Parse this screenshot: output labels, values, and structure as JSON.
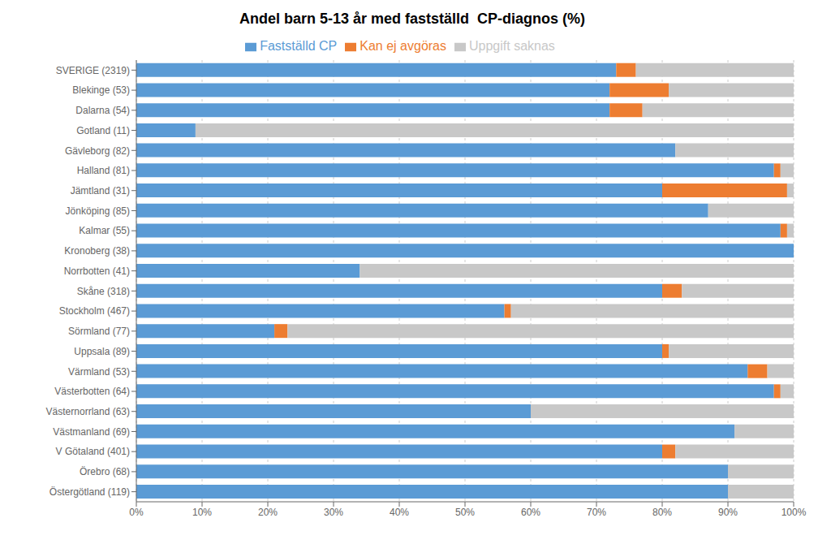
{
  "chart_data": {
    "type": "bar",
    "title": "Andel barn 5-13 år med fastställd  CP-diagnos (%)",
    "orientation": "horizontal",
    "stacked": true,
    "grid": true,
    "legend": "top",
    "categories": [
      "SVERIGE (2319)",
      "Blekinge (53)",
      "Dalarna (54)",
      "Gotland (11)",
      "Gävleborg (82)",
      "Halland (81)",
      "Jämtland (31)",
      "Jönköping (85)",
      "Kalmar (55)",
      "Kronoberg (38)",
      "Norrbotten (41)",
      "Skåne (318)",
      "Stockholm (467)",
      "Sörmland (77)",
      "Uppsala (89)",
      "Värmland (53)",
      "Västerbotten (64)",
      "Västernorrland (63)",
      "Västmanland (69)",
      "V Götaland (401)",
      "Örebro (68)",
      "Östergötland (119)"
    ],
    "series": [
      {
        "name": "Fastställd CP",
        "color": "#5B9BD5",
        "values": [
          73,
          72,
          72,
          9,
          82,
          97,
          80,
          87,
          98,
          100,
          34,
          80,
          56,
          21,
          80,
          93,
          97,
          60,
          91,
          80,
          90,
          90
        ]
      },
      {
        "name": "Kan ej avgöras",
        "color": "#ED7D31",
        "values": [
          3,
          9,
          5,
          0,
          0,
          1,
          19,
          0,
          1,
          0,
          0,
          3,
          1,
          2,
          1,
          3,
          1,
          0,
          0,
          2,
          0,
          0
        ]
      },
      {
        "name": "Uppgift saknas",
        "color": "#C8C8C8",
        "values": [
          24,
          19,
          23,
          91,
          18,
          2,
          1,
          13,
          1,
          0,
          66,
          17,
          43,
          77,
          19,
          4,
          2,
          40,
          9,
          18,
          10,
          10
        ]
      }
    ],
    "xlim": [
      0,
      100
    ],
    "xticks": [
      {
        "value": 0,
        "label": "0%"
      },
      {
        "value": 10,
        "label": "10%"
      },
      {
        "value": 20,
        "label": "20%"
      },
      {
        "value": 30,
        "label": "30%"
      },
      {
        "value": 40,
        "label": "40%"
      },
      {
        "value": 50,
        "label": "50%"
      },
      {
        "value": 60,
        "label": "60%"
      },
      {
        "value": 70,
        "label": "70%"
      },
      {
        "value": 80,
        "label": "80%"
      },
      {
        "value": 90,
        "label": "90%"
      },
      {
        "value": 100,
        "label": "100%"
      }
    ]
  }
}
